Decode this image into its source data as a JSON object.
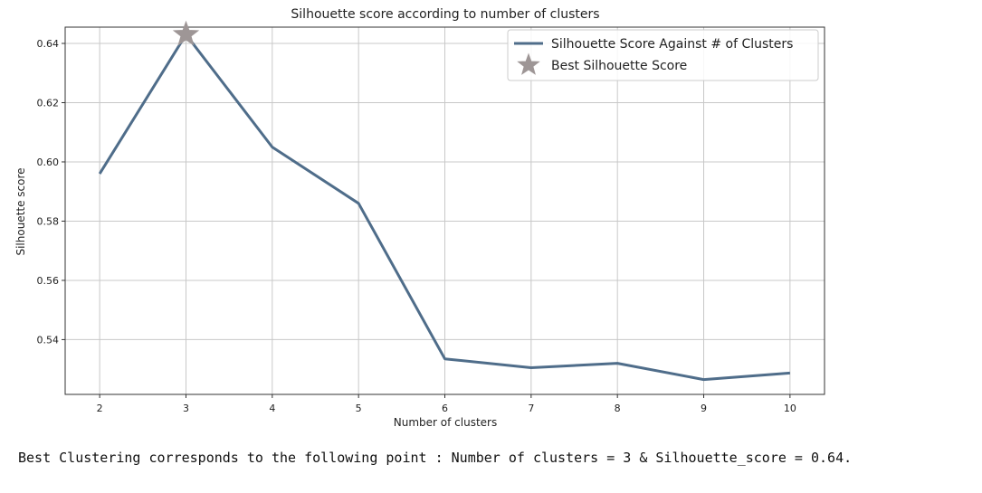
{
  "chart_data": {
    "type": "line",
    "title": "Silhouette score according to number of clusters",
    "xlabel": "Number of clusters",
    "ylabel": "Silhouette score",
    "x": [
      2,
      3,
      4,
      5,
      6,
      7,
      8,
      9,
      10
    ],
    "xticks": [
      "2",
      "3",
      "4",
      "5",
      "6",
      "7",
      "8",
      "9",
      "10"
    ],
    "xlim": [
      1.6,
      10.4
    ],
    "ylim": [
      0.5215,
      0.6455
    ],
    "yticks": [
      "0.54",
      "0.56",
      "0.58",
      "0.60",
      "0.62",
      "0.64"
    ],
    "grid": true,
    "legend_position": "top-right",
    "series": [
      {
        "name": "Silhouette Score Against # of Clusters",
        "values": [
          0.596,
          0.643,
          0.605,
          0.586,
          0.5335,
          0.5305,
          0.532,
          0.5265,
          0.5287
        ],
        "color": "#4f6d8a"
      }
    ],
    "best_point": {
      "name": "Best Silhouette Score",
      "x": 3,
      "y": 0.643,
      "color": "#9e9696",
      "marker": "star"
    }
  },
  "output_text": "Best Clustering corresponds to the following point : Number of clusters = 3 & Silhouette_score = 0.64."
}
